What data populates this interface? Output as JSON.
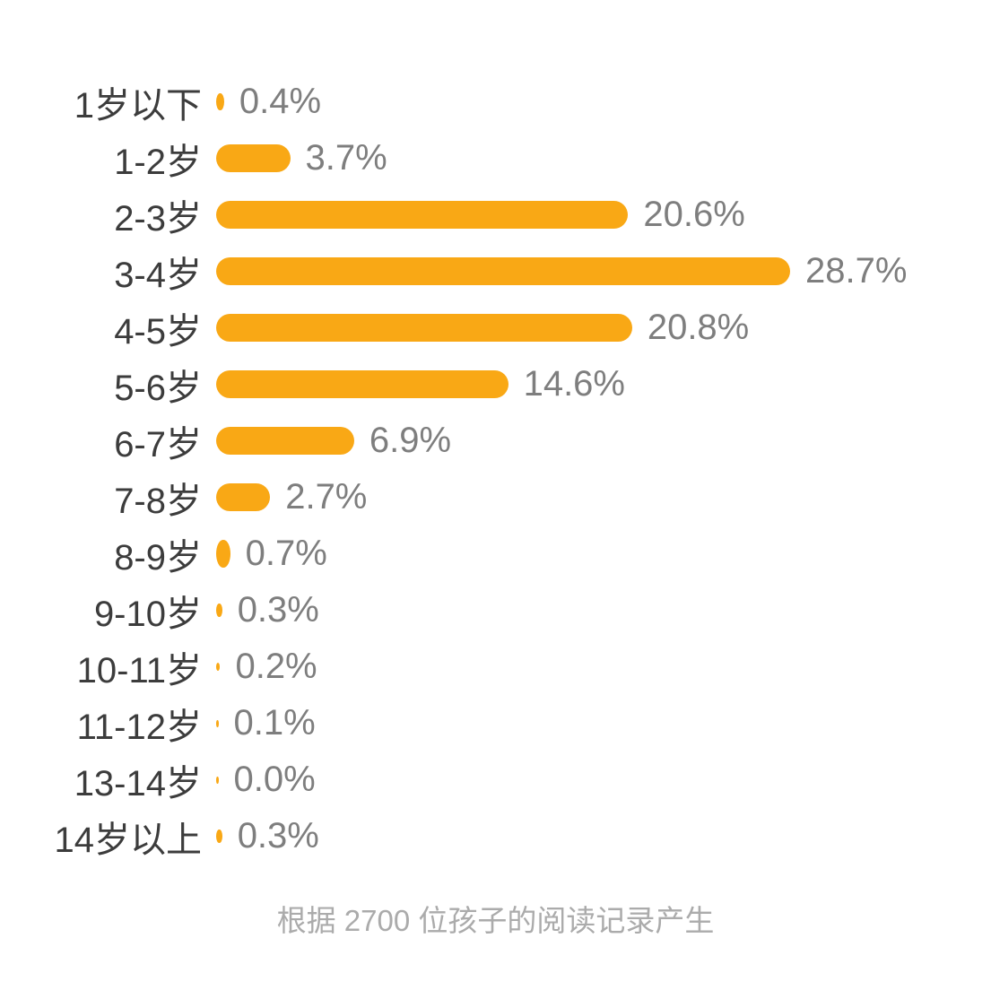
{
  "chart_data": {
    "type": "bar",
    "orientation": "horizontal",
    "title": "",
    "xlabel": "",
    "ylabel": "",
    "grid": false,
    "legend": false,
    "xlim": [
      0,
      30
    ],
    "categories": [
      "1岁以下",
      "1-2岁",
      "2-3岁",
      "3-4岁",
      "4-5岁",
      "5-6岁",
      "6-7岁",
      "7-8岁",
      "8-9岁",
      "9-10岁",
      "10-11岁",
      "11-12岁",
      "13-14岁",
      "14岁以上"
    ],
    "values": [
      0.4,
      3.7,
      20.6,
      28.7,
      20.8,
      14.6,
      6.9,
      2.7,
      0.7,
      0.3,
      0.2,
      0.1,
      0.0,
      0.3
    ],
    "value_labels": [
      "0.4%",
      "3.7%",
      "20.6%",
      "28.7%",
      "20.8%",
      "14.6%",
      "6.9%",
      "2.7%",
      "0.7%",
      "0.3%",
      "0.2%",
      "0.1%",
      "0.0%",
      "0.3%"
    ],
    "bar_color": "#f9a815",
    "category_label_color": "#3c3c3c",
    "value_label_color": "#7e7e7e"
  },
  "footer": {
    "caption": "根据 2700 位孩子的阅读记录产生",
    "caption_color": "#ababab"
  }
}
